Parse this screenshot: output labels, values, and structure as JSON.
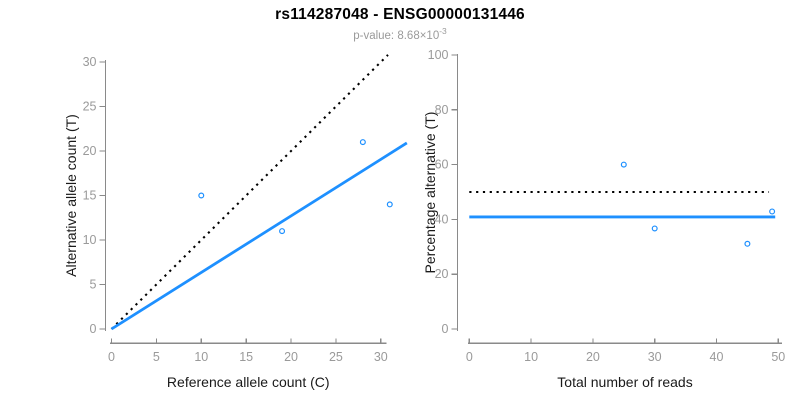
{
  "header": {
    "title": "rs114287048 - ENSG00000131446",
    "subtitle_base": "p-value: 8.68×10",
    "subtitle_exponent": "-3"
  },
  "colors": {
    "accent_blue": "#1E90FF",
    "line_black": "#000000",
    "axis_line_gray": "#8a8a8a",
    "tick_label_gray": "#9a9a9a",
    "axis_title_color": "#1a1a1a"
  },
  "chart_data": [
    {
      "name": "allele-counts-scatter",
      "type": "scatter",
      "title": "rs114287048 - ENSG00000131446",
      "xlabel": "Reference allele count (C)",
      "ylabel": "Alternative allele count (T)",
      "xlim": [
        0,
        31
      ],
      "ylim": [
        0,
        30.8
      ],
      "xticks": [
        0,
        5,
        10,
        15,
        20,
        25,
        30
      ],
      "yticks": [
        0,
        5,
        10,
        15,
        20,
        25,
        30
      ],
      "grid": false,
      "legend": "none",
      "points": [
        [
          10,
          15
        ],
        [
          19,
          11
        ],
        [
          28,
          21
        ],
        [
          31,
          14
        ]
      ],
      "point_color": "#1E90FF",
      "lines": [
        {
          "name": "identity-line",
          "style": "dotted",
          "color": "#000000",
          "from": [
            0,
            0
          ],
          "to": [
            30.8,
            30.8
          ]
        },
        {
          "name": "fitted-ratio-line",
          "style": "solid",
          "color": "#1E90FF",
          "from": [
            0,
            0
          ],
          "to": [
            32.9,
            20.9
          ]
        }
      ]
    },
    {
      "name": "percentage-alternative-scatter",
      "type": "scatter",
      "title": "rs114287048 - ENSG00000131446",
      "xlabel": "Total number of reads",
      "ylabel": "Percentage alternative (T)",
      "xlim": [
        0,
        50
      ],
      "ylim": [
        0,
        100
      ],
      "xticks": [
        0,
        10,
        20,
        30,
        40,
        50
      ],
      "yticks": [
        0,
        20,
        40,
        60,
        80,
        100
      ],
      "grid": false,
      "legend": "none",
      "points": [
        [
          25,
          60
        ],
        [
          30,
          36.7
        ],
        [
          45,
          31.1
        ],
        [
          49,
          42.9
        ]
      ],
      "point_color": "#1E90FF",
      "lines": [
        {
          "name": "expected-50pct-line",
          "style": "dotted",
          "color": "#000000",
          "from": [
            0,
            50
          ],
          "to": [
            48.5,
            50
          ]
        },
        {
          "name": "mean-percentage-line",
          "style": "solid",
          "color": "#1E90FF",
          "from": [
            0,
            40.9
          ],
          "to": [
            49.5,
            40.9
          ]
        }
      ]
    }
  ]
}
